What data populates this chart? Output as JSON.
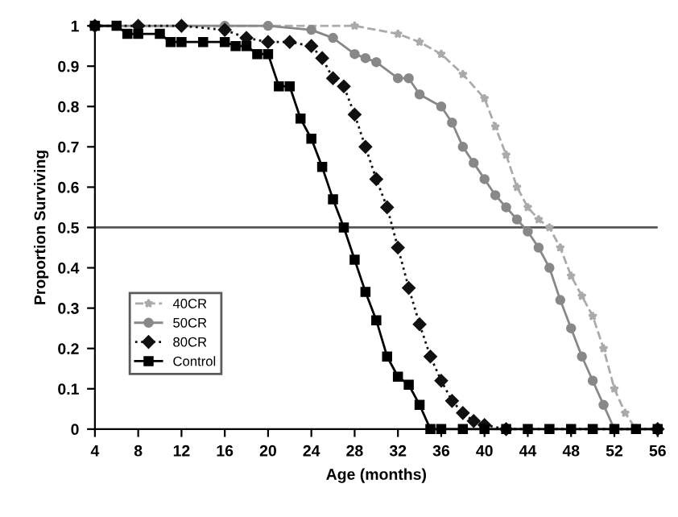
{
  "chart_data": {
    "type": "line",
    "xlabel": "Age (months)",
    "ylabel": "Proportion Surviving",
    "xlim": [
      4,
      56
    ],
    "xticks": [
      4,
      8,
      12,
      16,
      20,
      24,
      28,
      32,
      36,
      40,
      44,
      48,
      52,
      56
    ],
    "ylim": [
      0,
      1
    ],
    "yticks": [
      0,
      0.1,
      0.2,
      0.3,
      0.4,
      0.5,
      0.6,
      0.7,
      0.8,
      0.9,
      1
    ],
    "grid": false,
    "legend": "bottom left",
    "ref_lines": [
      {
        "axis": "y",
        "value": 0.5,
        "color": "#555555"
      }
    ],
    "series": [
      {
        "name": "40CR",
        "color": "#aaaaaa",
        "line_style": "dashed",
        "marker": "star",
        "x": [
          4,
          20,
          28,
          32,
          34,
          36,
          38,
          40,
          41,
          42,
          43,
          44,
          45,
          46,
          47,
          48,
          49,
          50,
          51,
          52,
          53,
          54,
          56
        ],
        "values": [
          1,
          1,
          1,
          0.98,
          0.96,
          0.93,
          0.88,
          0.82,
          0.75,
          0.68,
          0.6,
          0.55,
          0.52,
          0.5,
          0.45,
          0.38,
          0.33,
          0.28,
          0.2,
          0.1,
          0.04,
          0,
          0
        ]
      },
      {
        "name": "50CR",
        "color": "#888888",
        "line_style": "solid",
        "marker": "circle",
        "x": [
          4,
          16,
          20,
          24,
          26,
          28,
          29,
          30,
          32,
          33,
          34,
          36,
          37,
          38,
          39,
          40,
          41,
          42,
          43,
          44,
          45,
          46,
          47,
          48,
          49,
          50,
          51,
          52,
          54,
          56
        ],
        "values": [
          1,
          1,
          1,
          0.99,
          0.97,
          0.93,
          0.92,
          0.91,
          0.87,
          0.87,
          0.83,
          0.8,
          0.76,
          0.7,
          0.66,
          0.62,
          0.58,
          0.55,
          0.52,
          0.49,
          0.45,
          0.4,
          0.32,
          0.25,
          0.18,
          0.12,
          0.06,
          0,
          0,
          0
        ]
      },
      {
        "name": "80CR",
        "color": "#111111",
        "line_style": "dotted",
        "marker": "diamond",
        "x": [
          4,
          8,
          12,
          16,
          18,
          20,
          22,
          24,
          25,
          26,
          27,
          28,
          29,
          30,
          31,
          32,
          33,
          34,
          35,
          36,
          37,
          38,
          39,
          40,
          42,
          56
        ],
        "values": [
          1,
          1,
          1,
          0.99,
          0.97,
          0.96,
          0.96,
          0.95,
          0.92,
          0.87,
          0.85,
          0.78,
          0.7,
          0.62,
          0.55,
          0.45,
          0.35,
          0.26,
          0.18,
          0.12,
          0.07,
          0.04,
          0.02,
          0.01,
          0,
          0
        ]
      },
      {
        "name": "Control",
        "color": "#000000",
        "line_style": "solid",
        "marker": "square",
        "x": [
          4,
          6,
          7,
          8,
          10,
          11,
          12,
          14,
          16,
          17,
          18,
          19,
          20,
          21,
          22,
          23,
          24,
          25,
          26,
          27,
          28,
          29,
          30,
          31,
          32,
          33,
          34,
          35,
          36,
          38,
          40,
          42,
          44,
          46,
          48,
          50,
          52,
          54,
          56
        ],
        "values": [
          1,
          1,
          0.98,
          0.98,
          0.98,
          0.96,
          0.96,
          0.96,
          0.96,
          0.95,
          0.95,
          0.93,
          0.93,
          0.85,
          0.85,
          0.77,
          0.72,
          0.65,
          0.57,
          0.5,
          0.42,
          0.34,
          0.27,
          0.18,
          0.13,
          0.11,
          0.06,
          0,
          0,
          0,
          0,
          0,
          0,
          0,
          0,
          0,
          0,
          0,
          0
        ]
      }
    ]
  }
}
